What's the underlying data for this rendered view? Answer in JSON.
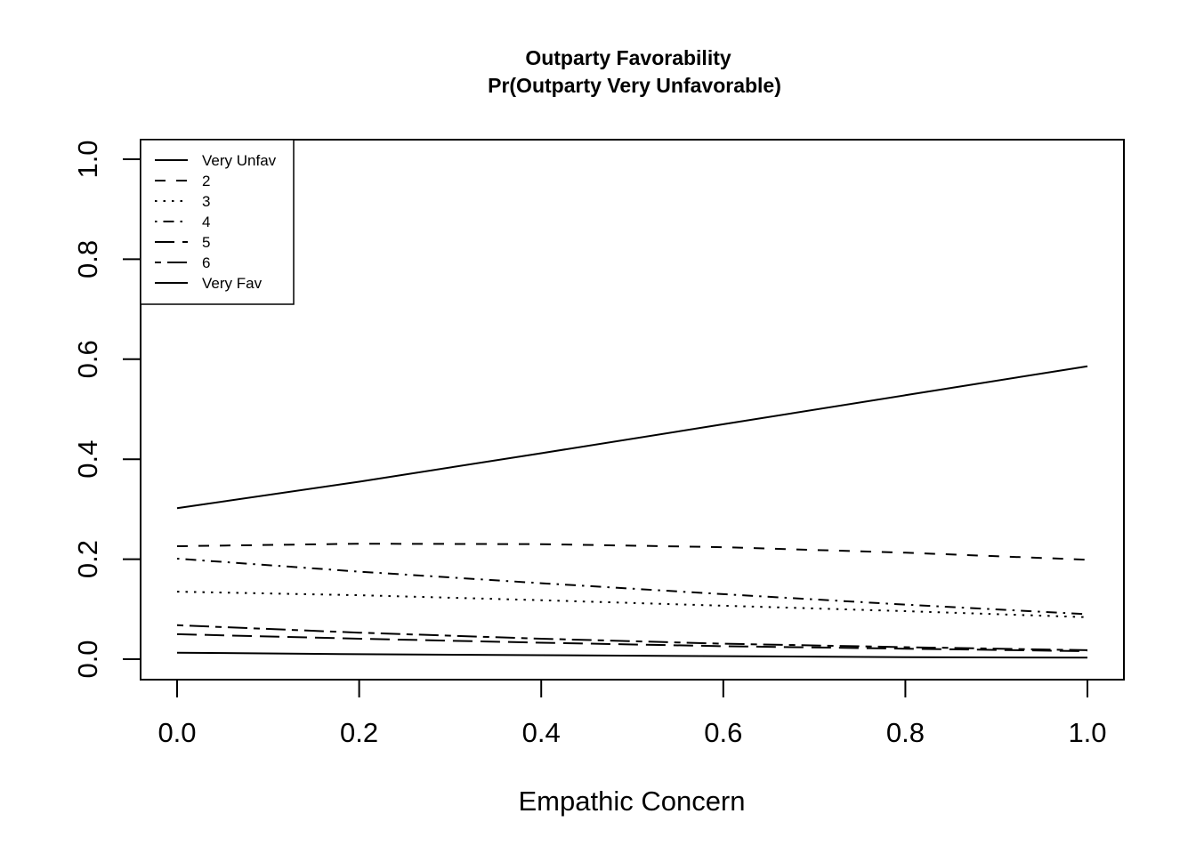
{
  "chart_data": {
    "type": "line",
    "title": "Outparty Favorability",
    "subtitle": "Pr(Outparty Very Unfavorable)",
    "xlabel": "Empathic Concern",
    "ylabel": "",
    "xlim": [
      0,
      1
    ],
    "ylim": [
      0,
      1
    ],
    "xticks": [
      "0.0",
      "0.2",
      "0.4",
      "0.6",
      "0.8",
      "1.0"
    ],
    "yticks": [
      "0.0",
      "0.2",
      "0.4",
      "0.6",
      "0.8",
      "1.0"
    ],
    "grid": false,
    "legend_position": "top-left",
    "x": [
      0.0,
      0.2,
      0.4,
      0.6,
      0.8,
      1.0
    ],
    "series": [
      {
        "name": "Very Unfav",
        "linestyle": "solid",
        "values": [
          0.302,
          0.355,
          0.412,
          0.47,
          0.528,
          0.586
        ]
      },
      {
        "name": "2",
        "linestyle": "dashed",
        "values": [
          0.226,
          0.231,
          0.23,
          0.224,
          0.213,
          0.199
        ]
      },
      {
        "name": "3",
        "linestyle": "dotted",
        "values": [
          0.135,
          0.128,
          0.118,
          0.107,
          0.096,
          0.084
        ]
      },
      {
        "name": "4",
        "linestyle": "dotdash",
        "values": [
          0.201,
          0.175,
          0.152,
          0.13,
          0.109,
          0.09
        ]
      },
      {
        "name": "5",
        "linestyle": "longdash",
        "values": [
          0.05,
          0.041,
          0.033,
          0.026,
          0.021,
          0.016
        ]
      },
      {
        "name": "6",
        "linestyle": "twodash",
        "values": [
          0.068,
          0.053,
          0.041,
          0.031,
          0.024,
          0.018
        ]
      },
      {
        "name": "Very Fav",
        "linestyle": "solid",
        "values": [
          0.013,
          0.01,
          0.008,
          0.006,
          0.004,
          0.003
        ]
      }
    ]
  }
}
